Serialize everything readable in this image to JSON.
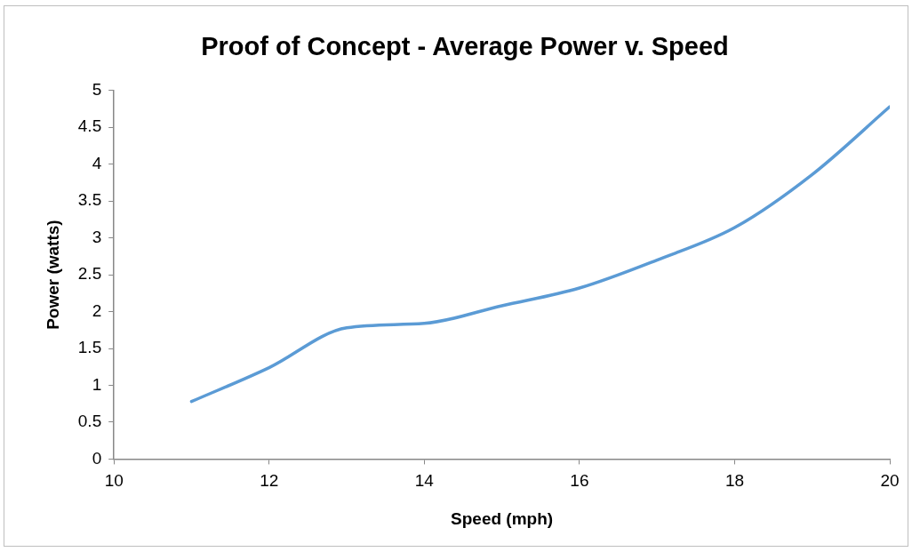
{
  "chart_data": {
    "type": "line",
    "title": "Proof of Concept - Average Power v. Speed",
    "xlabel": "Speed (mph)",
    "ylabel": "Power (watts)",
    "x": [
      11,
      12,
      13,
      14,
      15,
      16,
      17,
      18,
      19,
      20
    ],
    "series": [
      {
        "color": "#5b9bd5",
        "values": [
          0.78,
          1.24,
          1.78,
          1.84,
          2.08,
          2.32,
          2.7,
          3.14,
          3.86,
          4.78
        ]
      }
    ],
    "xlim": [
      10,
      20
    ],
    "xticks": [
      10,
      12,
      14,
      16,
      18,
      20
    ],
    "ylim": [
      0,
      5
    ],
    "yticks": [
      0,
      0.5,
      1,
      1.5,
      2,
      2.5,
      3,
      3.5,
      4,
      4.5,
      5
    ],
    "grid": false,
    "legend": false,
    "marker": "none",
    "line_style": "solid"
  }
}
